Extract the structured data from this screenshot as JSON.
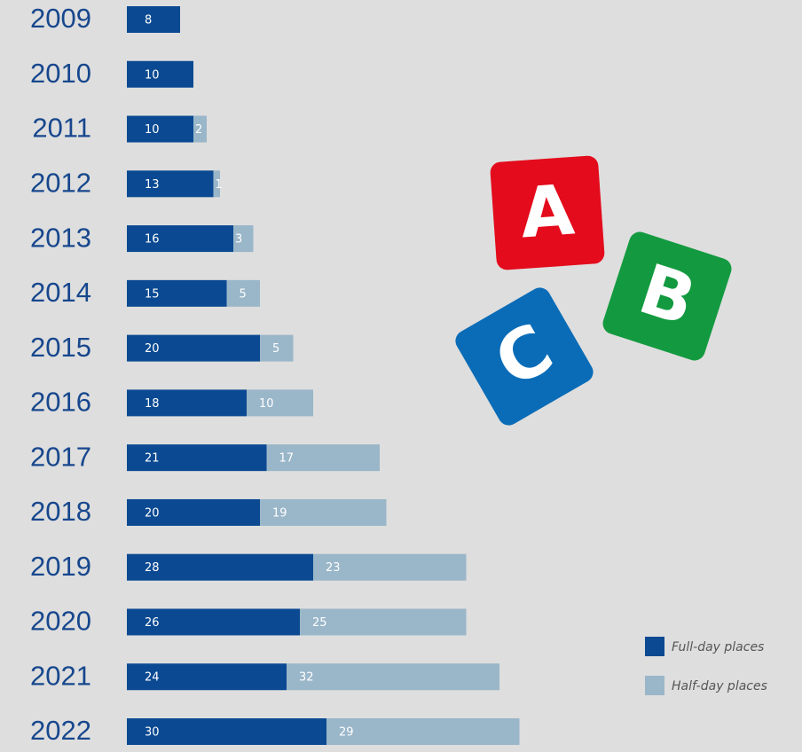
{
  "chart_data": {
    "type": "bar",
    "orientation": "horizontal",
    "stacked": true,
    "categories": [
      "2009",
      "2010",
      "2011",
      "2012",
      "2013",
      "2014",
      "2015",
      "2016",
      "2017",
      "2018",
      "2019",
      "2020",
      "2021",
      "2022"
    ],
    "series": [
      {
        "name": "Full-day places",
        "color": "#0b4a92",
        "values": [
          8,
          10,
          10,
          13,
          16,
          15,
          20,
          18,
          21,
          20,
          28,
          26,
          24,
          30
        ]
      },
      {
        "name": "Half-day places",
        "color": "#9ab6c9",
        "values": [
          null,
          null,
          2,
          1,
          3,
          5,
          5,
          10,
          17,
          19,
          23,
          25,
          32,
          29
        ]
      }
    ],
    "legend": "bottom-right",
    "illustration_letters": [
      "A",
      "B",
      "C"
    ]
  }
}
